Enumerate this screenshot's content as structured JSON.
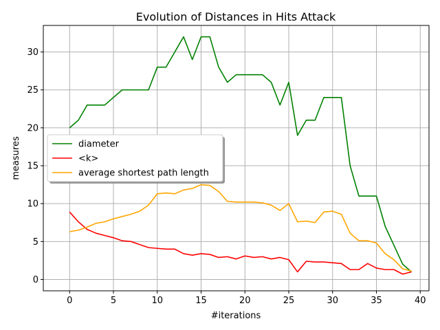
{
  "chart_data": {
    "type": "line",
    "title": "Evolution of Distances in Hits Attack",
    "xlabel": "#iterations",
    "ylabel": "measures",
    "xlim": [
      -3,
      41
    ],
    "ylim": [
      -1.5,
      33.5
    ],
    "xticks": [
      0,
      5,
      10,
      15,
      20,
      25,
      30,
      35,
      40
    ],
    "yticks": [
      0,
      5,
      10,
      15,
      20,
      25,
      30
    ],
    "grid": true,
    "legend_position": "center-left",
    "x": [
      0,
      1,
      2,
      3,
      4,
      5,
      6,
      7,
      8,
      9,
      10,
      11,
      12,
      13,
      14,
      15,
      16,
      17,
      18,
      19,
      20,
      21,
      22,
      23,
      24,
      25,
      26,
      27,
      28,
      29,
      30,
      31,
      32,
      33,
      34,
      35,
      36,
      37,
      38,
      39
    ],
    "series": [
      {
        "name": "diameter",
        "color": "#008000",
        "values": [
          20,
          21,
          23,
          23,
          23,
          24,
          25,
          25,
          25,
          25,
          28,
          28,
          30,
          32,
          29,
          32,
          32,
          28,
          26,
          27,
          27,
          27,
          27,
          26,
          23,
          26,
          19,
          21,
          21,
          24,
          24,
          24,
          15,
          11,
          11,
          11,
          7,
          4.5,
          2,
          1
        ]
      },
      {
        "name": "<k>",
        "color": "#ff0000",
        "values": [
          8.9,
          7.6,
          6.6,
          6.1,
          5.8,
          5.5,
          5.1,
          5.0,
          4.6,
          4.2,
          4.1,
          4.0,
          4.0,
          3.4,
          3.2,
          3.4,
          3.3,
          2.9,
          3.0,
          2.7,
          3.1,
          2.9,
          3.0,
          2.7,
          2.9,
          2.6,
          1.0,
          2.4,
          2.3,
          2.3,
          2.2,
          2.1,
          1.3,
          1.3,
          2.1,
          1.5,
          1.3,
          1.3,
          0.7,
          1.0
        ]
      },
      {
        "name": "average shortest path length",
        "color": "#ffa500",
        "values": [
          6.3,
          6.5,
          6.9,
          7.4,
          7.6,
          8.0,
          8.3,
          8.6,
          9.0,
          9.8,
          11.3,
          11.4,
          11.3,
          11.8,
          12.0,
          12.5,
          12.4,
          11.6,
          10.3,
          10.2,
          10.2,
          10.2,
          10.1,
          9.8,
          9.1,
          10.0,
          7.6,
          7.7,
          7.5,
          8.9,
          9.0,
          8.6,
          6.1,
          5.1,
          5.1,
          4.8,
          3.4,
          2.6,
          1.4,
          1.1
        ]
      }
    ]
  }
}
